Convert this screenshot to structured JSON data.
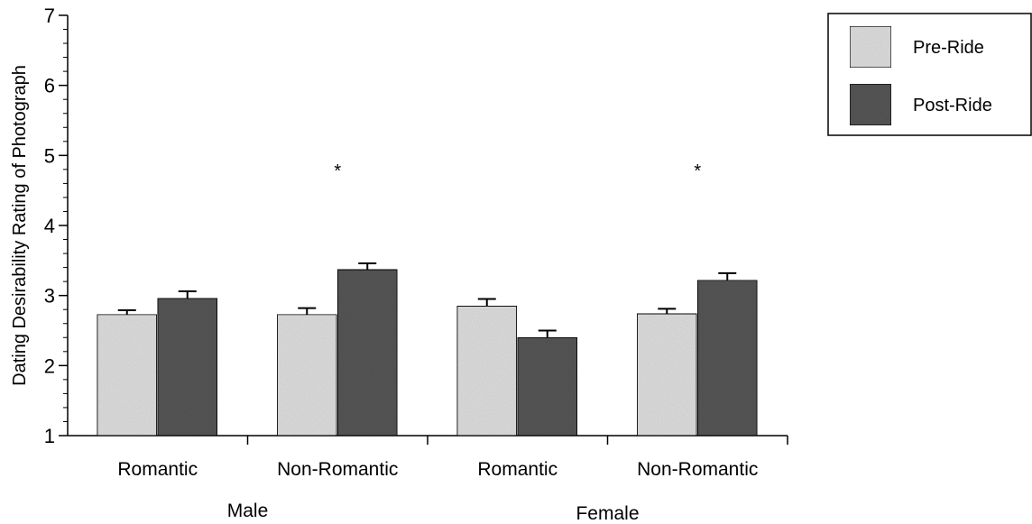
{
  "chart_data": {
    "type": "bar",
    "ylabel": "Dating Desirability Rating of Photograph",
    "ylim": [
      1,
      7
    ],
    "yticks": [
      "1",
      "2",
      "3",
      "4",
      "5",
      "6",
      "7"
    ],
    "minor_ticks": true,
    "grid": false,
    "legend_position": "top-right",
    "groups": [
      {
        "label": "Male",
        "categories": [
          "Romantic",
          "Non-Romantic"
        ]
      },
      {
        "label": "Female",
        "categories": [
          "Romantic",
          "Non-Romantic"
        ]
      }
    ],
    "categories": [
      "Romantic",
      "Non-Romantic",
      "Romantic",
      "Non-Romantic"
    ],
    "series": [
      {
        "name": "Pre-Ride",
        "color": "#dcdcdc",
        "values": [
          2.73,
          2.73,
          2.85,
          2.74
        ],
        "errors": [
          0.06,
          0.09,
          0.1,
          0.07
        ]
      },
      {
        "name": "Post-Ride",
        "color": "#555555",
        "values": [
          2.96,
          3.37,
          2.4,
          3.22
        ],
        "errors": [
          0.1,
          0.09,
          0.1,
          0.1
        ]
      }
    ],
    "significance_markers": [
      {
        "category_index": 1,
        "label": "*"
      },
      {
        "category_index": 3,
        "label": "*"
      }
    ]
  }
}
